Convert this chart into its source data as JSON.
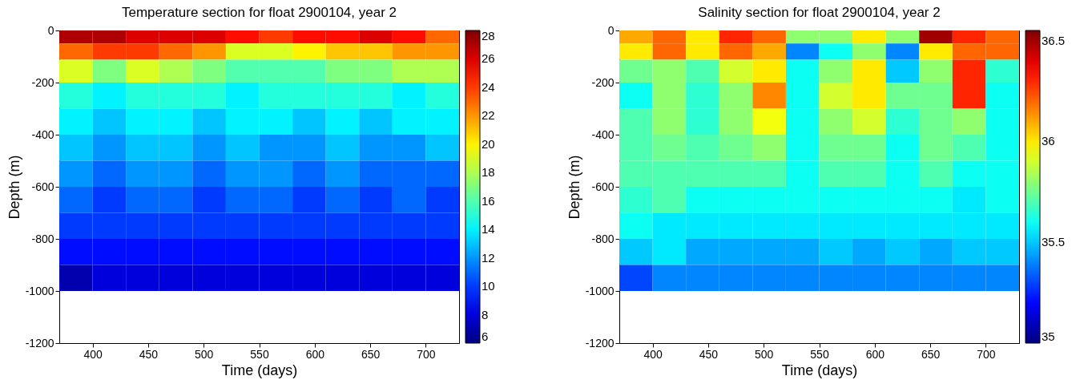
{
  "chart_data": [
    {
      "type": "heatmap",
      "title": "Temperature section for float 2900104, year 2",
      "xlabel": "Time (days)",
      "ylabel": "Depth (m)",
      "x": [
        385,
        415,
        445,
        475,
        505,
        535,
        565,
        595,
        625,
        655,
        685,
        715
      ],
      "y": [
        -25,
        -75,
        -150,
        -250,
        -350,
        -450,
        -550,
        -650,
        -750,
        -850,
        -950
      ],
      "xlim": [
        370,
        730
      ],
      "ylim": [
        -1200,
        0
      ],
      "xticks": [
        400,
        450,
        500,
        550,
        600,
        650,
        700
      ],
      "yticks": [
        -1200,
        -1000,
        -800,
        -600,
        -400,
        -200,
        0
      ],
      "clim": [
        6,
        28
      ],
      "cticks": [
        6,
        8,
        10,
        12,
        14,
        16,
        18,
        20,
        22,
        24,
        26,
        28
      ],
      "cells": [
        [
          27,
          27,
          26,
          26,
          26,
          25,
          24,
          25,
          25,
          26,
          25,
          23
        ],
        [
          23,
          24,
          24,
          23,
          22,
          19,
          19,
          20,
          21,
          21,
          22,
          22
        ],
        [
          19,
          17,
          19,
          18,
          17,
          16,
          16,
          16,
          17,
          17,
          18,
          18
        ],
        [
          15,
          14,
          15,
          15,
          15,
          14,
          15,
          15,
          15,
          15,
          14,
          15
        ],
        [
          14,
          13,
          14,
          14,
          13,
          14,
          14,
          13,
          14,
          13,
          14,
          14
        ],
        [
          13,
          12,
          13,
          13,
          12,
          13,
          12,
          12,
          13,
          12,
          12,
          13
        ],
        [
          12,
          11,
          12,
          12,
          11,
          12,
          12,
          11,
          12,
          11,
          11,
          11
        ],
        [
          11,
          10,
          11,
          11,
          10,
          11,
          11,
          10,
          11,
          10,
          11,
          10
        ],
        [
          10,
          10,
          10,
          10,
          10,
          10,
          10,
          10,
          10,
          10,
          10,
          10
        ],
        [
          9,
          9,
          9,
          9,
          9,
          9,
          9,
          9,
          9,
          9,
          9,
          9
        ],
        [
          7,
          8,
          8,
          8,
          8,
          8,
          8,
          8,
          8,
          8,
          8,
          8
        ]
      ]
    },
    {
      "type": "heatmap",
      "title": "Salinity section for float 2900104, year 2",
      "xlabel": "Time (days)",
      "ylabel": "Depth (m)",
      "x": [
        385,
        415,
        445,
        475,
        505,
        535,
        565,
        595,
        625,
        655,
        685,
        715
      ],
      "y": [
        -25,
        -75,
        -150,
        -250,
        -350,
        -450,
        -550,
        -650,
        -750,
        -850,
        -950
      ],
      "xlim": [
        370,
        730
      ],
      "ylim": [
        -1200,
        0
      ],
      "xticks": [
        400,
        450,
        500,
        550,
        600,
        650,
        700
      ],
      "yticks": [
        -1200,
        -1000,
        -800,
        -600,
        -400,
        -200,
        0
      ],
      "clim": [
        35,
        36.55
      ],
      "cticks": [
        35,
        35.5,
        36,
        36.5
      ],
      "cells": [
        [
          36.1,
          36.2,
          36.0,
          36.3,
          36.2,
          35.8,
          35.8,
          36.0,
          35.8,
          36.5,
          36.3,
          36.2
        ],
        [
          36.0,
          36.2,
          36.0,
          36.2,
          36.1,
          35.4,
          35.6,
          35.8,
          35.4,
          36.0,
          36.2,
          36.2
        ],
        [
          35.75,
          35.8,
          35.7,
          35.9,
          36.0,
          35.6,
          35.8,
          36.0,
          35.5,
          35.8,
          36.3,
          35.65
        ],
        [
          35.6,
          35.8,
          35.65,
          35.8,
          36.15,
          35.6,
          35.9,
          36.0,
          35.75,
          35.75,
          36.3,
          35.6
        ],
        [
          35.7,
          35.8,
          35.65,
          35.8,
          35.95,
          35.6,
          35.8,
          35.9,
          35.65,
          35.75,
          35.8,
          35.6
        ],
        [
          35.7,
          35.75,
          35.7,
          35.75,
          35.8,
          35.6,
          35.75,
          35.75,
          35.6,
          35.75,
          35.7,
          35.6
        ],
        [
          35.7,
          35.7,
          35.7,
          35.7,
          35.7,
          35.6,
          35.7,
          35.7,
          35.6,
          35.7,
          35.6,
          35.6
        ],
        [
          35.65,
          35.7,
          35.6,
          35.6,
          35.6,
          35.6,
          35.6,
          35.6,
          35.6,
          35.6,
          35.55,
          35.6
        ],
        [
          35.6,
          35.55,
          35.55,
          35.55,
          35.55,
          35.55,
          35.55,
          35.55,
          35.55,
          35.55,
          35.55,
          35.55
        ],
        [
          35.5,
          35.55,
          35.45,
          35.45,
          35.45,
          35.45,
          35.5,
          35.45,
          35.5,
          35.45,
          35.5,
          35.5
        ],
        [
          35.3,
          35.4,
          35.4,
          35.4,
          35.4,
          35.4,
          35.4,
          35.4,
          35.4,
          35.4,
          35.4,
          35.4
        ]
      ]
    }
  ]
}
